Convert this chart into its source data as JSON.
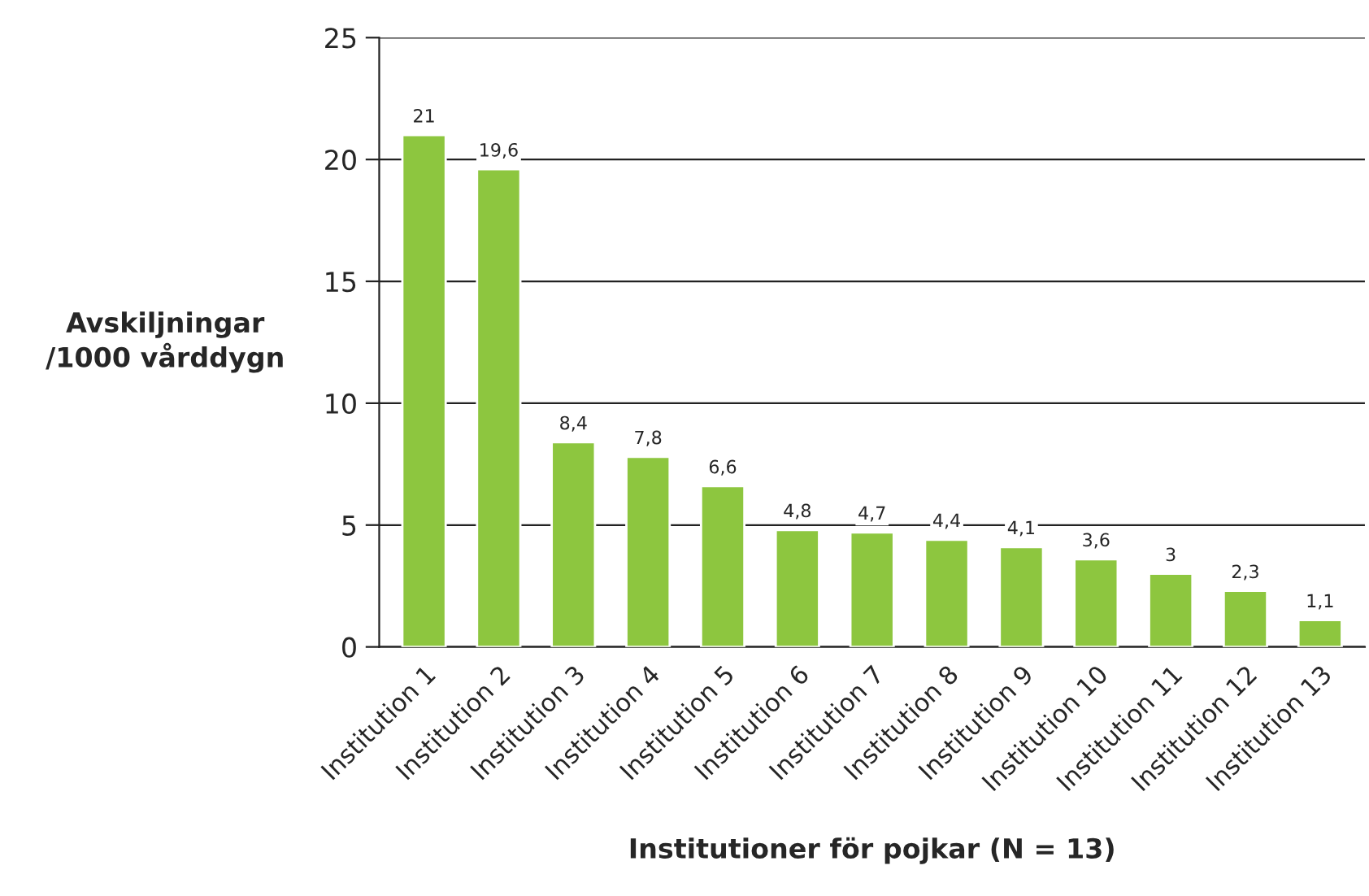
{
  "chart_data": {
    "type": "bar",
    "categories": [
      "Institution 1",
      "Institution 2",
      "Institution 3",
      "Institution 4",
      "Institution 5",
      "Institution 6",
      "Institution 7",
      "Institution 8",
      "Institution 9",
      "Institution 10",
      "Institution 11",
      "Institution 12",
      "Institution 13"
    ],
    "values": [
      21,
      19.6,
      8.4,
      7.8,
      6.6,
      4.8,
      4.7,
      4.4,
      4.1,
      3.6,
      3,
      2.3,
      1.1
    ],
    "value_labels": [
      "21",
      "19,6",
      "8,4",
      "7,8",
      "6,6",
      "4,8",
      "4,7",
      "4,4",
      "4,1",
      "3,6",
      "3",
      "2,3",
      "1,1"
    ],
    "color": "#8dc63f",
    "xlabel": "Institutioner för pojkar (N = 13)",
    "ylabel": "Avskiljningar\n/1000 vårddygn",
    "ylim": [
      0,
      25
    ],
    "yticks": [
      0,
      5,
      10,
      15,
      20,
      25
    ],
    "grid": "y",
    "legend": false
  }
}
